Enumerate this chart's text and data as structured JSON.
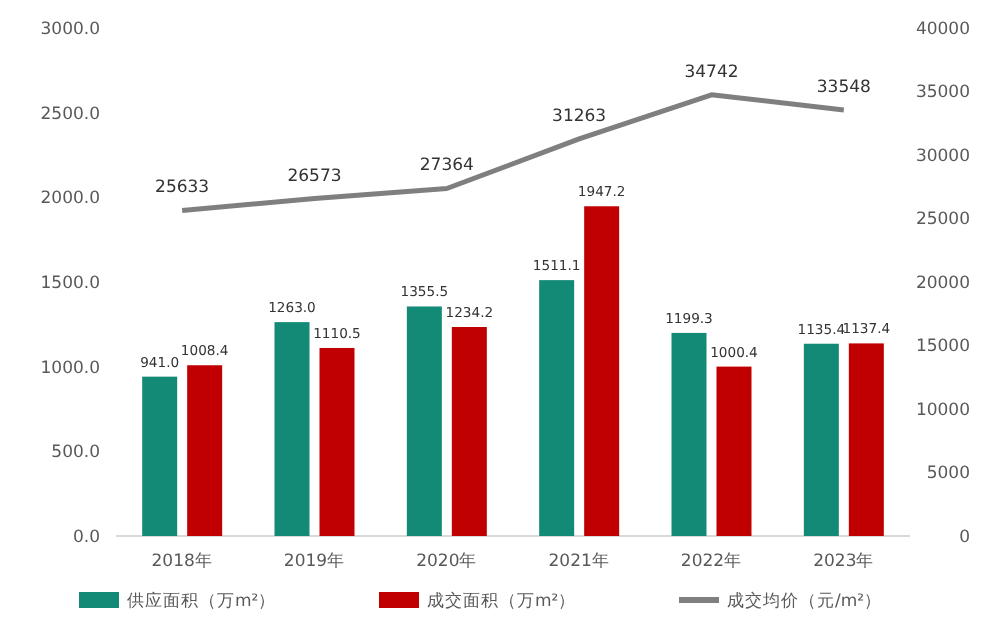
{
  "chart_data": {
    "type": "bar",
    "categories": [
      "2018年",
      "2019年",
      "2020年",
      "2021年",
      "2022年",
      "2023年"
    ],
    "series": [
      {
        "name": "供应面积（万m²）",
        "color": "#138a76",
        "values": [
          941.0,
          1263.0,
          1355.5,
          1511.1,
          1199.3,
          1135.4
        ],
        "value_labels": [
          "941.0",
          "1263.0",
          "1355.5",
          "1511.1",
          "1199.3",
          "1135.4"
        ]
      },
      {
        "name": "成交面积（万m²）",
        "color": "#c00000",
        "values": [
          1008.4,
          1110.5,
          1234.2,
          1947.2,
          1000.4,
          1137.4
        ],
        "value_labels": [
          "1008.4",
          "1110.5",
          "1234.2",
          "1947.2",
          "1000.4",
          "1137.4"
        ]
      },
      {
        "name": "成交均价（元/m²）",
        "type": "line",
        "axis": "y2",
        "color": "#7f7f7f",
        "marker": "none",
        "values": [
          25633,
          26573,
          27364,
          31263,
          34742,
          33548
        ],
        "value_labels": [
          "25633",
          "26573",
          "27364",
          "31263",
          "34742",
          "33548"
        ]
      }
    ],
    "ylim": [
      0,
      3000
    ],
    "yticks": [
      {
        "value": 0,
        "label": "0.0"
      },
      {
        "value": 500,
        "label": "500.0"
      },
      {
        "value": 1000,
        "label": "1000.0"
      },
      {
        "value": 1500,
        "label": "1500.0"
      },
      {
        "value": 2000,
        "label": "2000.0"
      },
      {
        "value": 2500,
        "label": "2500.0"
      },
      {
        "value": 3000,
        "label": "3000.0"
      }
    ],
    "y2lim": [
      0,
      40000
    ],
    "y2ticks": [
      0,
      5000,
      10000,
      15000,
      20000,
      25000,
      30000,
      35000,
      40000
    ],
    "legend": "bottom"
  }
}
